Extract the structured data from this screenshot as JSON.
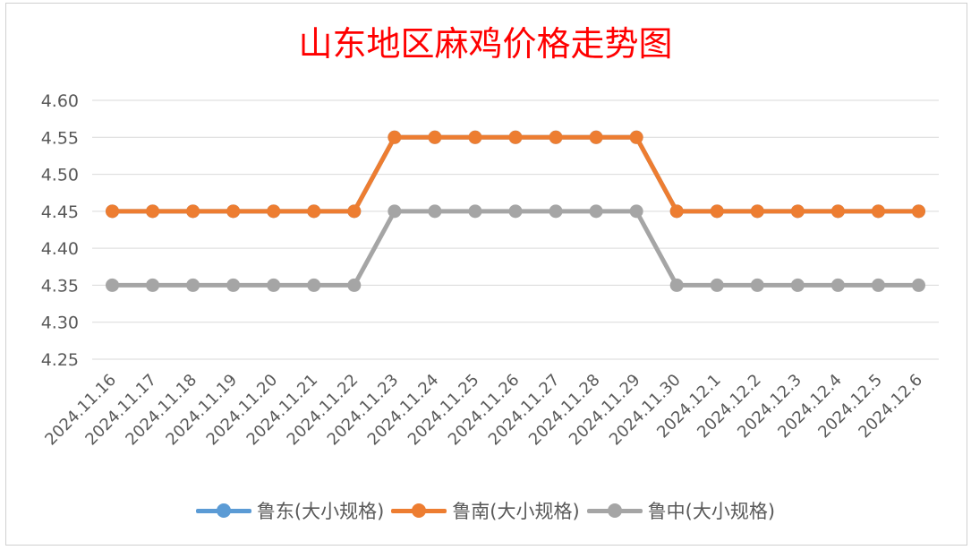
{
  "chart_data": {
    "type": "line",
    "title": "山东地区麻鸡价格走势图",
    "categories": [
      "2024.11.16",
      "2024.11.17",
      "2024.11.18",
      "2024.11.19",
      "2024.11.20",
      "2024.11.21",
      "2024.11.22",
      "2024.11.23",
      "2024.11.24",
      "2024.11.25",
      "2024.11.26",
      "2024.11.27",
      "2024.11.28",
      "2024.11.29",
      "2024.11.30",
      "2024.12.1",
      "2024.12.2",
      "2024.12.3",
      "2024.12.4",
      "2024.12.5",
      "2024.12.6"
    ],
    "series": [
      {
        "name": "鲁东(大小规格)",
        "color": "#5b9bd5",
        "values": [
          4.45,
          4.45,
          4.45,
          4.45,
          4.45,
          4.45,
          4.45,
          4.55,
          4.55,
          4.55,
          4.55,
          4.55,
          4.55,
          4.55,
          4.45,
          4.45,
          4.45,
          4.45,
          4.45,
          4.45,
          4.45
        ]
      },
      {
        "name": "鲁南(大小规格)",
        "color": "#ed7d31",
        "values": [
          4.45,
          4.45,
          4.45,
          4.45,
          4.45,
          4.45,
          4.45,
          4.55,
          4.55,
          4.55,
          4.55,
          4.55,
          4.55,
          4.55,
          4.45,
          4.45,
          4.45,
          4.45,
          4.45,
          4.45,
          4.45
        ]
      },
      {
        "name": "鲁中(大小规格)",
        "color": "#a5a5a5",
        "values": [
          4.35,
          4.35,
          4.35,
          4.35,
          4.35,
          4.35,
          4.35,
          4.45,
          4.45,
          4.45,
          4.45,
          4.45,
          4.45,
          4.45,
          4.35,
          4.35,
          4.35,
          4.35,
          4.35,
          4.35,
          4.35
        ]
      }
    ],
    "yticks": [
      "4.25",
      "4.30",
      "4.35",
      "4.40",
      "4.45",
      "4.50",
      "4.55",
      "4.60"
    ],
    "ylim": [
      4.25,
      4.6
    ],
    "grid": true,
    "legend_position": "bottom"
  }
}
